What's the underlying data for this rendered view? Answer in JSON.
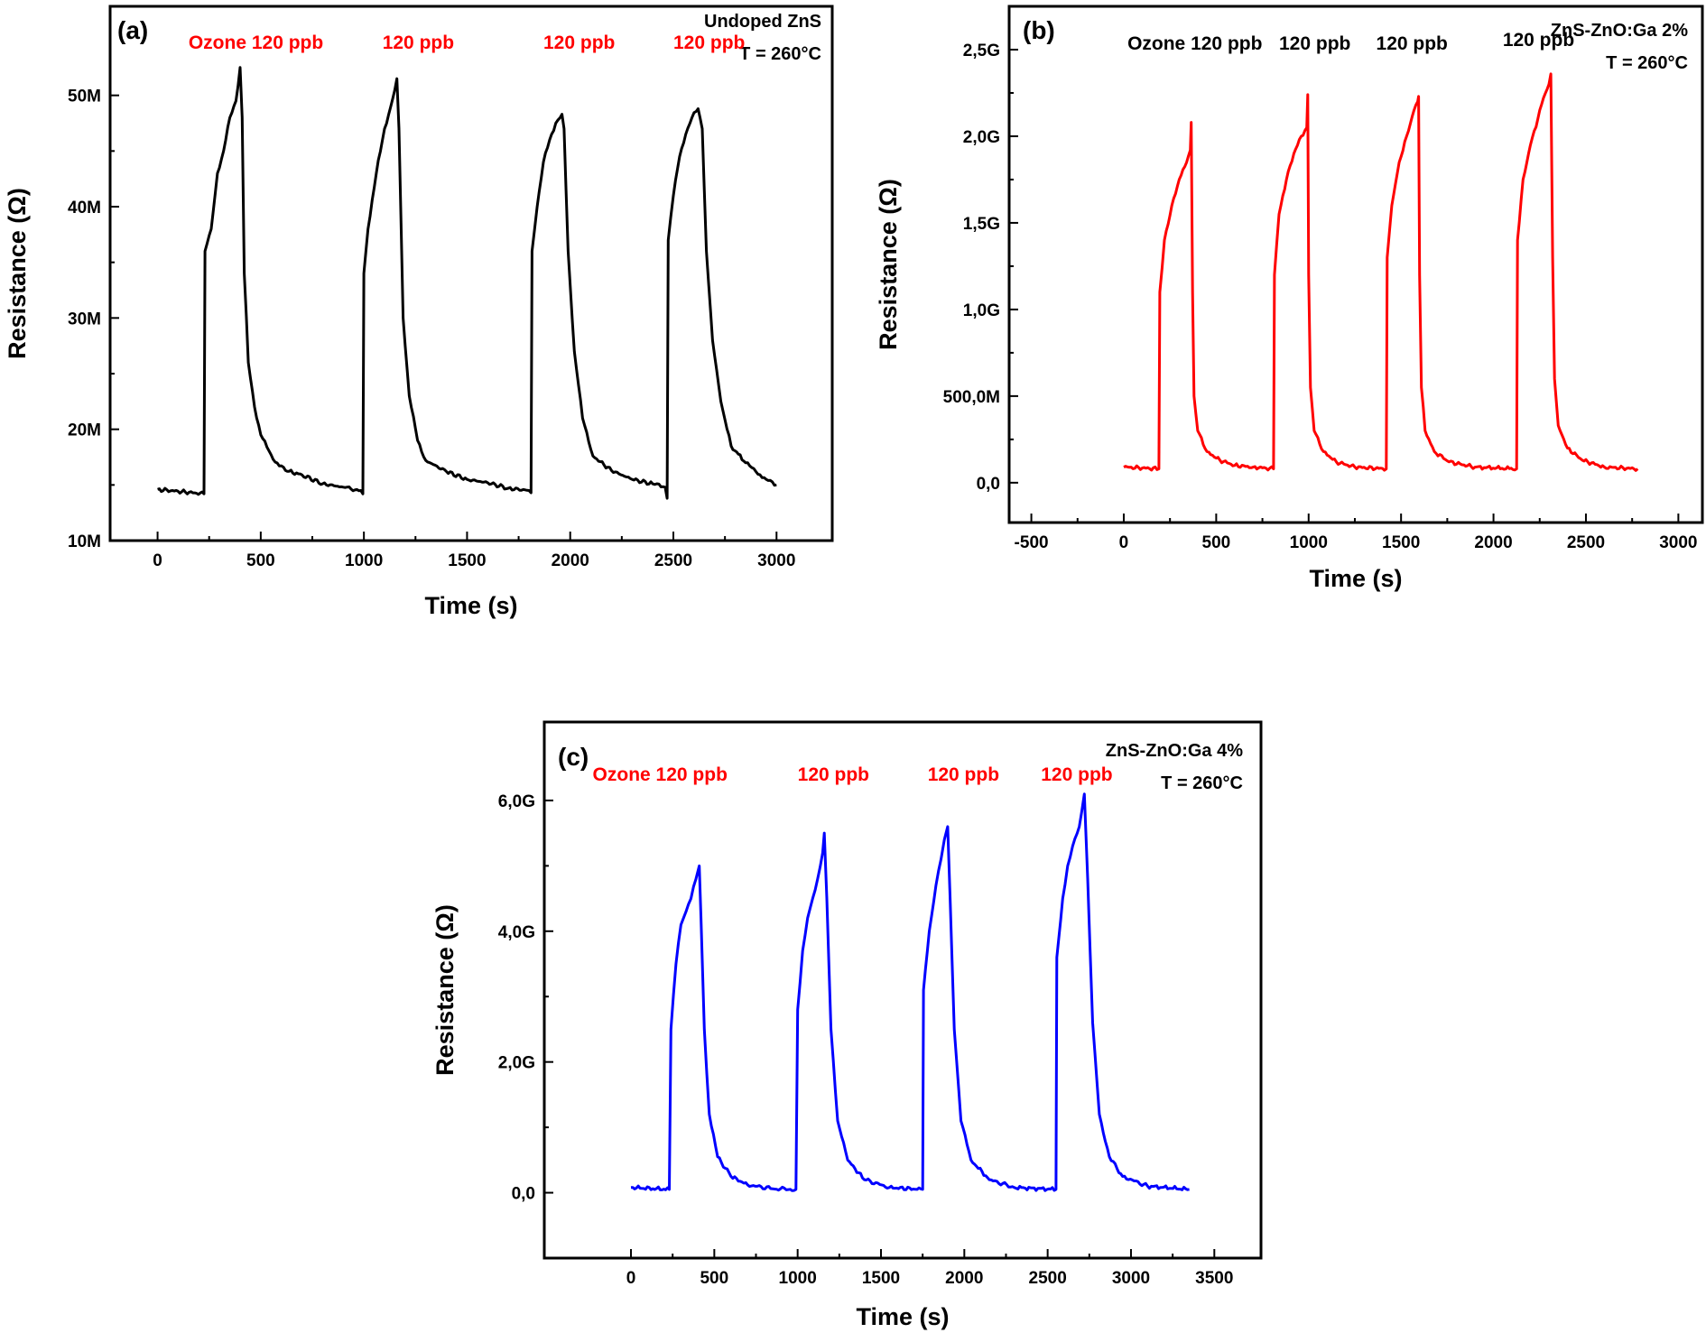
{
  "chart_data": [
    {
      "type": "line",
      "panel": "(a)",
      "annotations": [
        "Undoped ZnS",
        "T = 260°C"
      ],
      "xlabel": "Time (s)",
      "ylabel": "Resistance (Ω)",
      "xlim": [
        -230,
        3270
      ],
      "ylim": [
        10000000,
        58000000
      ],
      "yscale": "linear",
      "xticks": [
        0,
        500,
        1000,
        1500,
        2000,
        2500,
        3000
      ],
      "xtick_labels": [
        "0",
        "500",
        "1000",
        "1500",
        "2000",
        "2500",
        "3000"
      ],
      "yticks": [
        10000000,
        20000000,
        30000000,
        40000000,
        50000000
      ],
      "ytick_labels": [
        "10M",
        "20M",
        "30M",
        "40M",
        "50M"
      ],
      "grid": false,
      "line_color": "#000000",
      "pulse_labels": [
        {
          "text": "Ozone 120 ppb",
          "t": 150,
          "r": 54200000
        },
        {
          "text": "120 ppb",
          "t": 1090,
          "r": 54200000
        },
        {
          "text": "120 ppb",
          "t": 1870,
          "r": 54200000
        },
        {
          "text": "120 ppb",
          "t": 2500,
          "r": 54200000
        }
      ],
      "pulse_label_color": "#ff0000",
      "series": [
        {
          "values": [
            [
              0,
              14600000.0
            ],
            [
              225,
              14200000.0
            ],
            [
              230,
              36000000.0
            ],
            [
              260,
              38000000.0
            ],
            [
              290,
              43000000.0
            ],
            [
              320,
              45000000.0
            ],
            [
              350,
              48000000.0
            ],
            [
              380,
              49500000.0
            ],
            [
              400,
              52500000.0
            ],
            [
              410,
              48000000.0
            ],
            [
              420,
              34000000.0
            ],
            [
              440,
              26000000.0
            ],
            [
              470,
              22000000.0
            ],
            [
              500,
              19500000.0
            ],
            [
              560,
              17300000.0
            ],
            [
              620,
              16300000.0
            ],
            [
              700,
              15900000.0
            ],
            [
              800,
              15100000.0
            ],
            [
              900,
              14800000.0
            ],
            [
              985,
              14500000.0
            ],
            [
              995,
              14200000.0
            ],
            [
              1000,
              34000000.0
            ],
            [
              1020,
              38000000.0
            ],
            [
              1060,
              43000000.0
            ],
            [
              1100,
              47000000.0
            ],
            [
              1130,
              49000000.0
            ],
            [
              1150,
              50500000.0
            ],
            [
              1160,
              51500000.0
            ],
            [
              1170,
              47000000.0
            ],
            [
              1190,
              30000000.0
            ],
            [
              1220,
              23000000.0
            ],
            [
              1260,
              19000000.0
            ],
            [
              1300,
              17200000.0
            ],
            [
              1400,
              16200000.0
            ],
            [
              1500,
              15500000.0
            ],
            [
              1600,
              15200000.0
            ],
            [
              1700,
              14700000.0
            ],
            [
              1800,
              14500000.0
            ],
            [
              1810,
              14300000.0
            ],
            [
              1815,
              36000000.0
            ],
            [
              1840,
              40000000.0
            ],
            [
              1870,
              44000000.0
            ],
            [
              1900,
              46000000.0
            ],
            [
              1930,
              47500000.0
            ],
            [
              1960,
              48300000.0
            ],
            [
              1970,
              47000000.0
            ],
            [
              1990,
              36000000.0
            ],
            [
              2020,
              27000000.0
            ],
            [
              2060,
              21000000.0
            ],
            [
              2110,
              17600000.0
            ],
            [
              2200,
              16300000.0
            ],
            [
              2300,
              15500000.0
            ],
            [
              2400,
              15100000.0
            ],
            [
              2460,
              14800000.0
            ],
            [
              2470,
              13800000.0
            ],
            [
              2475,
              37000000.0
            ],
            [
              2500,
              41000000.0
            ],
            [
              2530,
              44500000.0
            ],
            [
              2560,
              46500000.0
            ],
            [
              2590,
              48000000.0
            ],
            [
              2620,
              48800000.0
            ],
            [
              2640,
              47000000.0
            ],
            [
              2660,
              36000000.0
            ],
            [
              2690,
              28000000.0
            ],
            [
              2730,
              22500000.0
            ],
            [
              2780,
              18500000.0
            ],
            [
              2850,
              17000000.0
            ],
            [
              2900,
              16200000.0
            ],
            [
              2950,
              15500000.0
            ],
            [
              3000,
              15000000.0
            ]
          ]
        }
      ]
    },
    {
      "type": "line",
      "panel": "(b)",
      "annotations": [
        "ZnS-ZnO:Ga 2%",
        "T = 260°C"
      ],
      "xlabel": "Time (s)",
      "ylabel": "Resistance (Ω)",
      "xlim": [
        -620,
        3130
      ],
      "ylim": [
        -230000000,
        2750000000
      ],
      "yscale": "linear",
      "xticks": [
        -500,
        0,
        500,
        1000,
        1500,
        2000,
        2500,
        3000
      ],
      "xtick_labels": [
        "-500",
        "0",
        "500",
        "1000",
        "1500",
        "2000",
        "2500",
        "3000"
      ],
      "yticks": [
        0,
        500000000,
        1000000000,
        1500000000,
        2000000000,
        2500000000
      ],
      "ytick_labels": [
        "0,0",
        "500,0M",
        "1,0G",
        "1,5G",
        "2,0G",
        "2,5G"
      ],
      "grid": false,
      "line_color": "#ff0000",
      "pulse_labels": [
        {
          "text": "Ozone 120 ppb",
          "t": 20,
          "r": 2500000000
        },
        {
          "text": "120 ppb",
          "t": 840,
          "r": 2500000000
        },
        {
          "text": "120 ppb",
          "t": 1365,
          "r": 2500000000
        },
        {
          "text": "120 ppb",
          "t": 2050,
          "r": 2520000000
        }
      ],
      "pulse_label_color": "#000000",
      "series": [
        {
          "values": [
            [
              0,
              90000000.0
            ],
            [
              190,
              80000000.0
            ],
            [
              195,
              1100000000.0
            ],
            [
              220,
              1400000000.0
            ],
            [
              260,
              1600000000.0
            ],
            [
              300,
              1750000000.0
            ],
            [
              340,
              1850000000.0
            ],
            [
              360,
              1920000000.0
            ],
            [
              365,
              2080000000.0
            ],
            [
              372,
              1100000000.0
            ],
            [
              380,
              500000000.0
            ],
            [
              400,
              300000000.0
            ],
            [
              450,
              180000000.0
            ],
            [
              520,
              130000000.0
            ],
            [
              600,
              100000000.0
            ],
            [
              700,
              90000000.0
            ],
            [
              810,
              80000000.0
            ],
            [
              815,
              1200000000.0
            ],
            [
              840,
              1550000000.0
            ],
            [
              880,
              1750000000.0
            ],
            [
              920,
              1900000000.0
            ],
            [
              960,
              2000000000.0
            ],
            [
              990,
              2050000000.0
            ],
            [
              995,
              2240000000.0
            ],
            [
              1000,
              1200000000.0
            ],
            [
              1010,
              550000000.0
            ],
            [
              1030,
              300000000.0
            ],
            [
              1080,
              180000000.0
            ],
            [
              1150,
              120000000.0
            ],
            [
              1250,
              90000000.0
            ],
            [
              1420,
              80000000.0
            ],
            [
              1425,
              1300000000.0
            ],
            [
              1450,
              1600000000.0
            ],
            [
              1490,
              1850000000.0
            ],
            [
              1530,
              2000000000.0
            ],
            [
              1570,
              2150000000.0
            ],
            [
              1590,
              2200000000.0
            ],
            [
              1595,
              2230000000.0
            ],
            [
              1600,
              1200000000.0
            ],
            [
              1610,
              550000000.0
            ],
            [
              1630,
              300000000.0
            ],
            [
              1680,
              180000000.0
            ],
            [
              1760,
              120000000.0
            ],
            [
              1900,
              90000000.0
            ],
            [
              2125,
              80000000.0
            ],
            [
              2130,
              1400000000.0
            ],
            [
              2160,
              1750000000.0
            ],
            [
              2200,
              1950000000.0
            ],
            [
              2240,
              2100000000.0
            ],
            [
              2270,
              2220000000.0
            ],
            [
              2300,
              2300000000.0
            ],
            [
              2310,
              2360000000.0
            ],
            [
              2320,
              1300000000.0
            ],
            [
              2330,
              600000000.0
            ],
            [
              2350,
              330000000.0
            ],
            [
              2400,
              200000000.0
            ],
            [
              2480,
              130000000.0
            ],
            [
              2600,
              90000000.0
            ],
            [
              2780,
              80000000.0
            ]
          ]
        }
      ]
    },
    {
      "type": "line",
      "panel": "(c)",
      "annotations": [
        "ZnS-ZnO:Ga 4%",
        "T = 260°C"
      ],
      "xlabel": "Time (s)",
      "ylabel": "Resistance (Ω)",
      "xlim": [
        -520,
        3780
      ],
      "ylim": [
        -1000000000,
        7200000000
      ],
      "yscale": "linear",
      "xticks": [
        0,
        500,
        1000,
        1500,
        2000,
        2500,
        3000,
        3500
      ],
      "xtick_labels": [
        "0",
        "500",
        "1000",
        "1500",
        "2000",
        "2500",
        "3000",
        "3500"
      ],
      "yticks": [
        0,
        2000000000,
        4000000000,
        6000000000
      ],
      "ytick_labels": [
        "0,0",
        "2,0G",
        "4,0G",
        "6,0G"
      ],
      "grid": false,
      "line_color": "#0000ff",
      "pulse_labels": [
        {
          "text": "Ozone 120 ppb",
          "t": -230,
          "r": 6300000000
        },
        {
          "text": "120 ppb",
          "t": 1000,
          "r": 6300000000
        },
        {
          "text": "120 ppb",
          "t": 1780,
          "r": 6300000000
        },
        {
          "text": "120 ppb",
          "t": 2460,
          "r": 6300000000
        }
      ],
      "pulse_label_color": "#ff0000",
      "series": [
        {
          "values": [
            [
              0,
              80000000.0
            ],
            [
              230,
              50000000.0
            ],
            [
              240,
              2500000000.0
            ],
            [
              270,
              3500000000.0
            ],
            [
              300,
              4100000000.0
            ],
            [
              330,
              4300000000.0
            ],
            [
              360,
              4500000000.0
            ],
            [
              390,
              4800000000.0
            ],
            [
              410,
              5000000000.0
            ],
            [
              420,
              4200000000.0
            ],
            [
              440,
              2500000000.0
            ],
            [
              470,
              1200000000.0
            ],
            [
              520,
              550000000.0
            ],
            [
              600,
              250000000.0
            ],
            [
              700,
              120000000.0
            ],
            [
              850,
              60000000.0
            ],
            [
              990,
              50000000.0
            ],
            [
              1000,
              2800000000.0
            ],
            [
              1030,
              3700000000.0
            ],
            [
              1060,
              4200000000.0
            ],
            [
              1090,
              4500000000.0
            ],
            [
              1120,
              4800000000.0
            ],
            [
              1150,
              5200000000.0
            ],
            [
              1160,
              5500000000.0
            ],
            [
              1175,
              4500000000.0
            ],
            [
              1200,
              2500000000.0
            ],
            [
              1240,
              1100000000.0
            ],
            [
              1300,
              500000000.0
            ],
            [
              1400,
              200000000.0
            ],
            [
              1550,
              80000000.0
            ],
            [
              1750,
              50000000.0
            ],
            [
              1755,
              3100000000.0
            ],
            [
              1790,
              4000000000.0
            ],
            [
              1830,
              4700000000.0
            ],
            [
              1860,
              5100000000.0
            ],
            [
              1880,
              5400000000.0
            ],
            [
              1900,
              5600000000.0
            ],
            [
              1915,
              4500000000.0
            ],
            [
              1940,
              2500000000.0
            ],
            [
              1980,
              1100000000.0
            ],
            [
              2040,
              500000000.0
            ],
            [
              2150,
              200000000.0
            ],
            [
              2300,
              80000000.0
            ],
            [
              2550,
              50000000.0
            ],
            [
              2555,
              3600000000.0
            ],
            [
              2590,
              4500000000.0
            ],
            [
              2620,
              5000000000.0
            ],
            [
              2650,
              5300000000.0
            ],
            [
              2690,
              5600000000.0
            ],
            [
              2720,
              6100000000.0
            ],
            [
              2740,
              4800000000.0
            ],
            [
              2770,
              2600000000.0
            ],
            [
              2810,
              1200000000.0
            ],
            [
              2870,
              550000000.0
            ],
            [
              2950,
              250000000.0
            ],
            [
              3100,
              100000000.0
            ],
            [
              3350,
              50000000.0
            ]
          ]
        }
      ]
    }
  ]
}
